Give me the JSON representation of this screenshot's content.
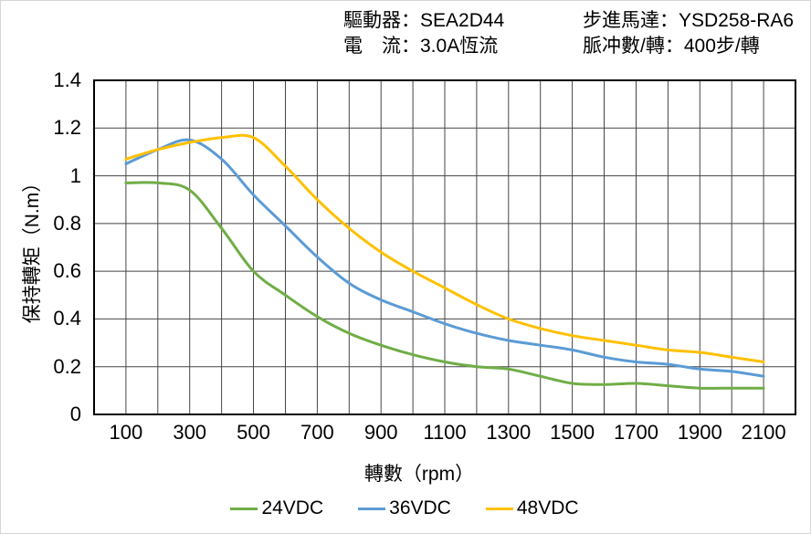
{
  "header": {
    "left": [
      {
        "label": "驅動器：",
        "value": "SEA2D44"
      },
      {
        "label": "電　流：",
        "value": "3.0A恆流"
      }
    ],
    "right": [
      {
        "label": "步進馬達：",
        "value": "YSD258-RA6"
      },
      {
        "label": "脈冲數/轉：",
        "value": "400步/轉"
      }
    ]
  },
  "chart_data": {
    "type": "line",
    "title": "",
    "xlabel": "轉數（rpm）",
    "ylabel": "保持轉矩（N.m）",
    "xlim": [
      0,
      2200
    ],
    "ylim": [
      0,
      1.4
    ],
    "x_grid_step": 100,
    "grid": true,
    "grid_color": "#454545",
    "axis_color": "#000000",
    "x_tick_labels": [
      100,
      300,
      500,
      700,
      900,
      1100,
      1300,
      1500,
      1700,
      1900,
      2100
    ],
    "y_ticks": [
      0,
      0.2,
      0.4,
      0.6,
      0.8,
      1,
      1.2,
      1.4
    ],
    "y_tick_labels": [
      "0",
      "0.2",
      "0.4",
      "0.6",
      "0.8",
      "1",
      "1.2",
      "1.4"
    ],
    "x": [
      100,
      200,
      300,
      400,
      500,
      600,
      700,
      800,
      900,
      1000,
      1100,
      1200,
      1300,
      1400,
      1500,
      1600,
      1700,
      1800,
      1900,
      2000,
      2100
    ],
    "series": [
      {
        "name": "24VDC",
        "color": "#70ad47",
        "values": [
          0.97,
          0.97,
          0.94,
          0.78,
          0.6,
          0.5,
          0.41,
          0.34,
          0.29,
          0.25,
          0.22,
          0.2,
          0.19,
          0.16,
          0.13,
          0.125,
          0.13,
          0.12,
          0.11,
          0.11,
          0.11
        ]
      },
      {
        "name": "36VDC",
        "color": "#5b9bd5",
        "values": [
          1.05,
          1.11,
          1.15,
          1.07,
          0.92,
          0.79,
          0.66,
          0.55,
          0.48,
          0.43,
          0.38,
          0.34,
          0.31,
          0.29,
          0.27,
          0.24,
          0.22,
          0.21,
          0.19,
          0.18,
          0.16
        ]
      },
      {
        "name": "48VDC",
        "color": "#ffc000",
        "values": [
          1.07,
          1.11,
          1.14,
          1.16,
          1.16,
          1.04,
          0.9,
          0.78,
          0.68,
          0.6,
          0.53,
          0.46,
          0.4,
          0.36,
          0.33,
          0.31,
          0.29,
          0.27,
          0.26,
          0.24,
          0.22
        ]
      }
    ],
    "legend_position": "bottom"
  }
}
